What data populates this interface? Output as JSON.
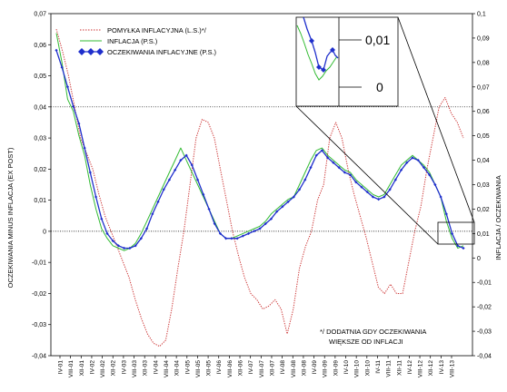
{
  "chart_data": {
    "type": "line",
    "ylabel_left": "OCZEKIWANIA MINUS INFLACJA (EX POST)",
    "ylabel_right": "INFLACJA / OCZEKIWANIA",
    "ylim_left": [
      -0.04,
      0.07
    ],
    "ylim_right": [
      -0.04,
      0.1
    ],
    "left_ticks": [
      "-0,04",
      "-0,03",
      "-0,02",
      "-0,01",
      "0",
      "0,01",
      "0,02",
      "0,03",
      "0,04",
      "0,05",
      "0,06",
      "0,07"
    ],
    "right_ticks": [
      "-0,04",
      "-0,03",
      "-0,02",
      "-0,01",
      "0",
      "0,01",
      "0,02",
      "0,03",
      "0,04",
      "0,05",
      "0,06",
      "0,07",
      "0,08",
      "0,09",
      "0,1"
    ],
    "x_ticks": [
      "IV-01",
      "VIII-01",
      "XII-01",
      "IV-02",
      "VIII-02",
      "XII-02",
      "IV-03",
      "VIII-03",
      "XII-03",
      "IV-04",
      "VIII-04",
      "XII-04",
      "IV-05",
      "VIII-05",
      "XII-05",
      "IV-06",
      "VIII-06",
      "XII-06",
      "IV-07",
      "VIII-07",
      "XII-07",
      "IV-08",
      "VIII-08",
      "XII-08",
      "IV-09",
      "VIII-09",
      "XII-09",
      "IV-10",
      "VIII-10",
      "XII-10",
      "IV-11",
      "VIII-11",
      "XII-11",
      "IV-12",
      "VIII-12",
      "XII-12",
      "IV-13",
      "VIII-13"
    ],
    "reference_lines_left": [
      0,
      0.04
    ],
    "legend_position": "top-left",
    "note_lines": [
      "*/ DODATNIA GDY OCZEKIWANIA",
      "WIĘKSZE OD INFLACJI"
    ],
    "inset": {
      "labels": [
        "0,01",
        "0"
      ]
    },
    "series": [
      {
        "name": "POMYŁKA INFLACYJNA (L.S.)*/",
        "axis": "left",
        "style": "dotted",
        "color": "#cc3333",
        "values": [
          0.065,
          0.058,
          0.05,
          0.04,
          0.03,
          0.025,
          0.02,
          0.012,
          0.005,
          0.0,
          -0.005,
          -0.01,
          -0.015,
          -0.022,
          -0.028,
          -0.033,
          -0.036,
          -0.037,
          -0.035,
          -0.025,
          -0.012,
          0.0,
          0.015,
          0.03,
          0.036,
          0.035,
          0.03,
          0.02,
          0.01,
          0.0,
          -0.008,
          -0.015,
          -0.02,
          -0.022,
          -0.025,
          -0.024,
          -0.022,
          -0.025,
          -0.033,
          -0.025,
          -0.012,
          -0.005,
          0.0,
          0.01,
          0.015,
          0.03,
          0.035,
          0.03,
          0.02,
          0.012,
          0.005,
          -0.002,
          -0.01,
          -0.018,
          -0.02,
          -0.017,
          -0.02,
          -0.02,
          -0.01,
          0.0,
          0.008,
          0.02,
          0.03,
          0.04,
          0.043,
          0.038,
          0.035,
          0.03
        ]
      },
      {
        "name": "INFLACJA (P.S.)",
        "axis": "right",
        "style": "solid",
        "color": "#33bb33",
        "values": [
          0.092,
          0.08,
          0.065,
          0.06,
          0.05,
          0.042,
          0.03,
          0.02,
          0.012,
          0.008,
          0.005,
          0.004,
          0.003,
          0.004,
          0.006,
          0.01,
          0.015,
          0.02,
          0.025,
          0.03,
          0.035,
          0.04,
          0.045,
          0.04,
          0.035,
          0.03,
          0.025,
          0.02,
          0.015,
          0.01,
          0.008,
          0.008,
          0.009,
          0.01,
          0.011,
          0.012,
          0.013,
          0.015,
          0.018,
          0.02,
          0.022,
          0.024,
          0.025,
          0.03,
          0.035,
          0.04,
          0.044,
          0.045,
          0.042,
          0.04,
          0.038,
          0.036,
          0.035,
          0.032,
          0.03,
          0.028,
          0.026,
          0.025,
          0.026,
          0.03,
          0.034,
          0.038,
          0.04,
          0.042,
          0.04,
          0.038,
          0.035,
          0.03,
          0.025,
          0.015,
          0.008,
          0.004,
          0.005
        ]
      },
      {
        "name": "OCZEKIWANIA INFLACYJNE (P.S.)",
        "axis": "right",
        "style": "solid-diamonds",
        "color": "#1f2fcc",
        "values": [
          0.085,
          0.078,
          0.07,
          0.062,
          0.055,
          0.045,
          0.035,
          0.025,
          0.016,
          0.01,
          0.007,
          0.005,
          0.004,
          0.004,
          0.005,
          0.008,
          0.012,
          0.018,
          0.023,
          0.028,
          0.032,
          0.036,
          0.04,
          0.042,
          0.038,
          0.032,
          0.026,
          0.02,
          0.014,
          0.01,
          0.008,
          0.008,
          0.008,
          0.009,
          0.01,
          0.011,
          0.012,
          0.014,
          0.016,
          0.019,
          0.021,
          0.023,
          0.025,
          0.028,
          0.032,
          0.037,
          0.042,
          0.044,
          0.041,
          0.039,
          0.037,
          0.035,
          0.034,
          0.031,
          0.029,
          0.027,
          0.025,
          0.024,
          0.025,
          0.028,
          0.032,
          0.036,
          0.039,
          0.041,
          0.04,
          0.037,
          0.034,
          0.03,
          0.025,
          0.018,
          0.01,
          0.005,
          0.004
        ]
      }
    ]
  }
}
